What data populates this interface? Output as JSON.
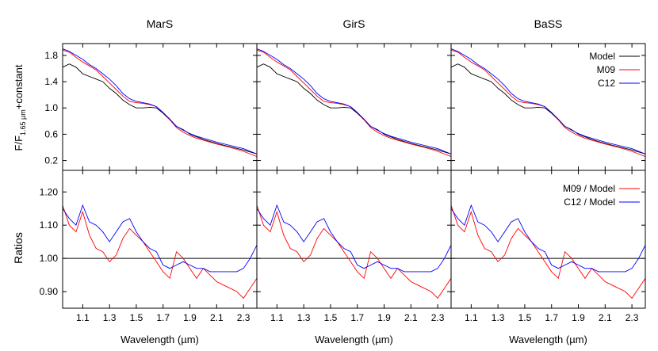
{
  "chart_data": {
    "type": "line",
    "x_label_prefix": "Wavelength (",
    "x_label_unit": "µm",
    "x_label_suffix": ")",
    "xlim": [
      0.95,
      2.4
    ],
    "x_ticks": [
      1.1,
      1.3,
      1.5,
      1.7,
      1.9,
      2.1,
      2.3
    ],
    "x_tick_labels": [
      "1.1",
      "1.3",
      "1.5",
      "1.7",
      "1.9",
      "2.1",
      "2.3"
    ],
    "panels": [
      {
        "title": "MarS"
      },
      {
        "title": "GirS"
      },
      {
        "title": "BaSS"
      }
    ],
    "top_row": {
      "ylabel_main": "F/F",
      "ylabel_sub": "1.65 µm",
      "ylabel_suffix": "+constant",
      "ylim": [
        0.05,
        1.98
      ],
      "y_ticks": [
        0.2,
        0.6,
        1.0,
        1.4,
        1.8
      ],
      "y_tick_labels": [
        "0.2",
        "0.6",
        "1.0",
        "1.4",
        "1.8"
      ],
      "series": [
        {
          "name": "Model",
          "color": "#000000",
          "x": [
            0.95,
            1.0,
            1.05,
            1.1,
            1.15,
            1.2,
            1.25,
            1.3,
            1.35,
            1.4,
            1.45,
            1.5,
            1.55,
            1.6,
            1.65,
            1.7,
            1.75,
            1.8,
            1.85,
            1.9,
            1.95,
            2.0,
            2.1,
            2.2,
            2.3,
            2.4
          ],
          "y": [
            1.62,
            1.67,
            1.62,
            1.52,
            1.48,
            1.44,
            1.4,
            1.3,
            1.22,
            1.12,
            1.05,
            1.0,
            1.0,
            1.01,
            1.0,
            0.92,
            0.82,
            0.72,
            0.67,
            0.6,
            0.56,
            0.52,
            0.46,
            0.41,
            0.36,
            0.3
          ]
        },
        {
          "name": "M09",
          "color": "#ff0000",
          "x": [
            0.95,
            1.0,
            1.05,
            1.1,
            1.15,
            1.2,
            1.25,
            1.3,
            1.35,
            1.4,
            1.45,
            1.5,
            1.55,
            1.6,
            1.65,
            1.7,
            1.75,
            1.8,
            1.85,
            1.9,
            1.95,
            2.0,
            2.1,
            2.2,
            2.3,
            2.4
          ],
          "y": [
            1.88,
            1.85,
            1.77,
            1.7,
            1.64,
            1.58,
            1.48,
            1.38,
            1.28,
            1.18,
            1.1,
            1.08,
            1.07,
            1.05,
            1.02,
            0.93,
            0.82,
            0.7,
            0.63,
            0.58,
            0.54,
            0.51,
            0.45,
            0.4,
            0.34,
            0.26
          ]
        },
        {
          "name": "C12",
          "color": "#0000ff",
          "x": [
            0.95,
            1.0,
            1.05,
            1.1,
            1.15,
            1.2,
            1.25,
            1.3,
            1.35,
            1.4,
            1.45,
            1.5,
            1.55,
            1.6,
            1.65,
            1.7,
            1.75,
            1.8,
            1.85,
            1.9,
            1.95,
            2.0,
            2.1,
            2.2,
            2.3,
            2.4
          ],
          "y": [
            1.9,
            1.86,
            1.8,
            1.74,
            1.66,
            1.6,
            1.52,
            1.44,
            1.34,
            1.22,
            1.14,
            1.1,
            1.08,
            1.06,
            1.02,
            0.93,
            0.83,
            0.72,
            0.66,
            0.61,
            0.57,
            0.54,
            0.48,
            0.43,
            0.38,
            0.3
          ]
        }
      ]
    },
    "bottom_row": {
      "ylabel": "Ratios",
      "ylim": [
        0.85,
        1.265
      ],
      "y_ticks": [
        0.9,
        1.0,
        1.1,
        1.2
      ],
      "y_tick_labels": [
        "0.90",
        "1.00",
        "1.10",
        "1.20"
      ],
      "reference_line": 1.0,
      "series": [
        {
          "name": "M09 / Model",
          "color": "#ff0000",
          "x": [
            0.95,
            1.0,
            1.05,
            1.1,
            1.15,
            1.2,
            1.25,
            1.3,
            1.35,
            1.4,
            1.45,
            1.5,
            1.55,
            1.6,
            1.65,
            1.7,
            1.75,
            1.8,
            1.85,
            1.9,
            1.95,
            2.0,
            2.05,
            2.1,
            2.15,
            2.2,
            2.25,
            2.3,
            2.35,
            2.4
          ],
          "y": [
            1.16,
            1.1,
            1.08,
            1.14,
            1.07,
            1.03,
            1.02,
            0.99,
            1.01,
            1.06,
            1.09,
            1.07,
            1.05,
            1.02,
            0.99,
            0.96,
            0.94,
            1.02,
            1.0,
            0.97,
            0.94,
            0.97,
            0.95,
            0.93,
            0.92,
            0.91,
            0.9,
            0.88,
            0.91,
            0.94
          ]
        },
        {
          "name": "C12 / Model",
          "color": "#0000ff",
          "x": [
            0.95,
            1.0,
            1.05,
            1.1,
            1.15,
            1.2,
            1.25,
            1.3,
            1.35,
            1.4,
            1.45,
            1.5,
            1.55,
            1.6,
            1.65,
            1.7,
            1.75,
            1.8,
            1.85,
            1.9,
            1.95,
            2.0,
            2.05,
            2.1,
            2.15,
            2.2,
            2.25,
            2.3,
            2.35,
            2.4
          ],
          "y": [
            1.15,
            1.12,
            1.1,
            1.16,
            1.11,
            1.1,
            1.08,
            1.05,
            1.08,
            1.11,
            1.12,
            1.08,
            1.05,
            1.03,
            1.02,
            0.98,
            0.97,
            0.98,
            0.99,
            0.98,
            0.97,
            0.97,
            0.96,
            0.96,
            0.96,
            0.96,
            0.96,
            0.97,
            1.0,
            1.04
          ]
        }
      ]
    }
  }
}
